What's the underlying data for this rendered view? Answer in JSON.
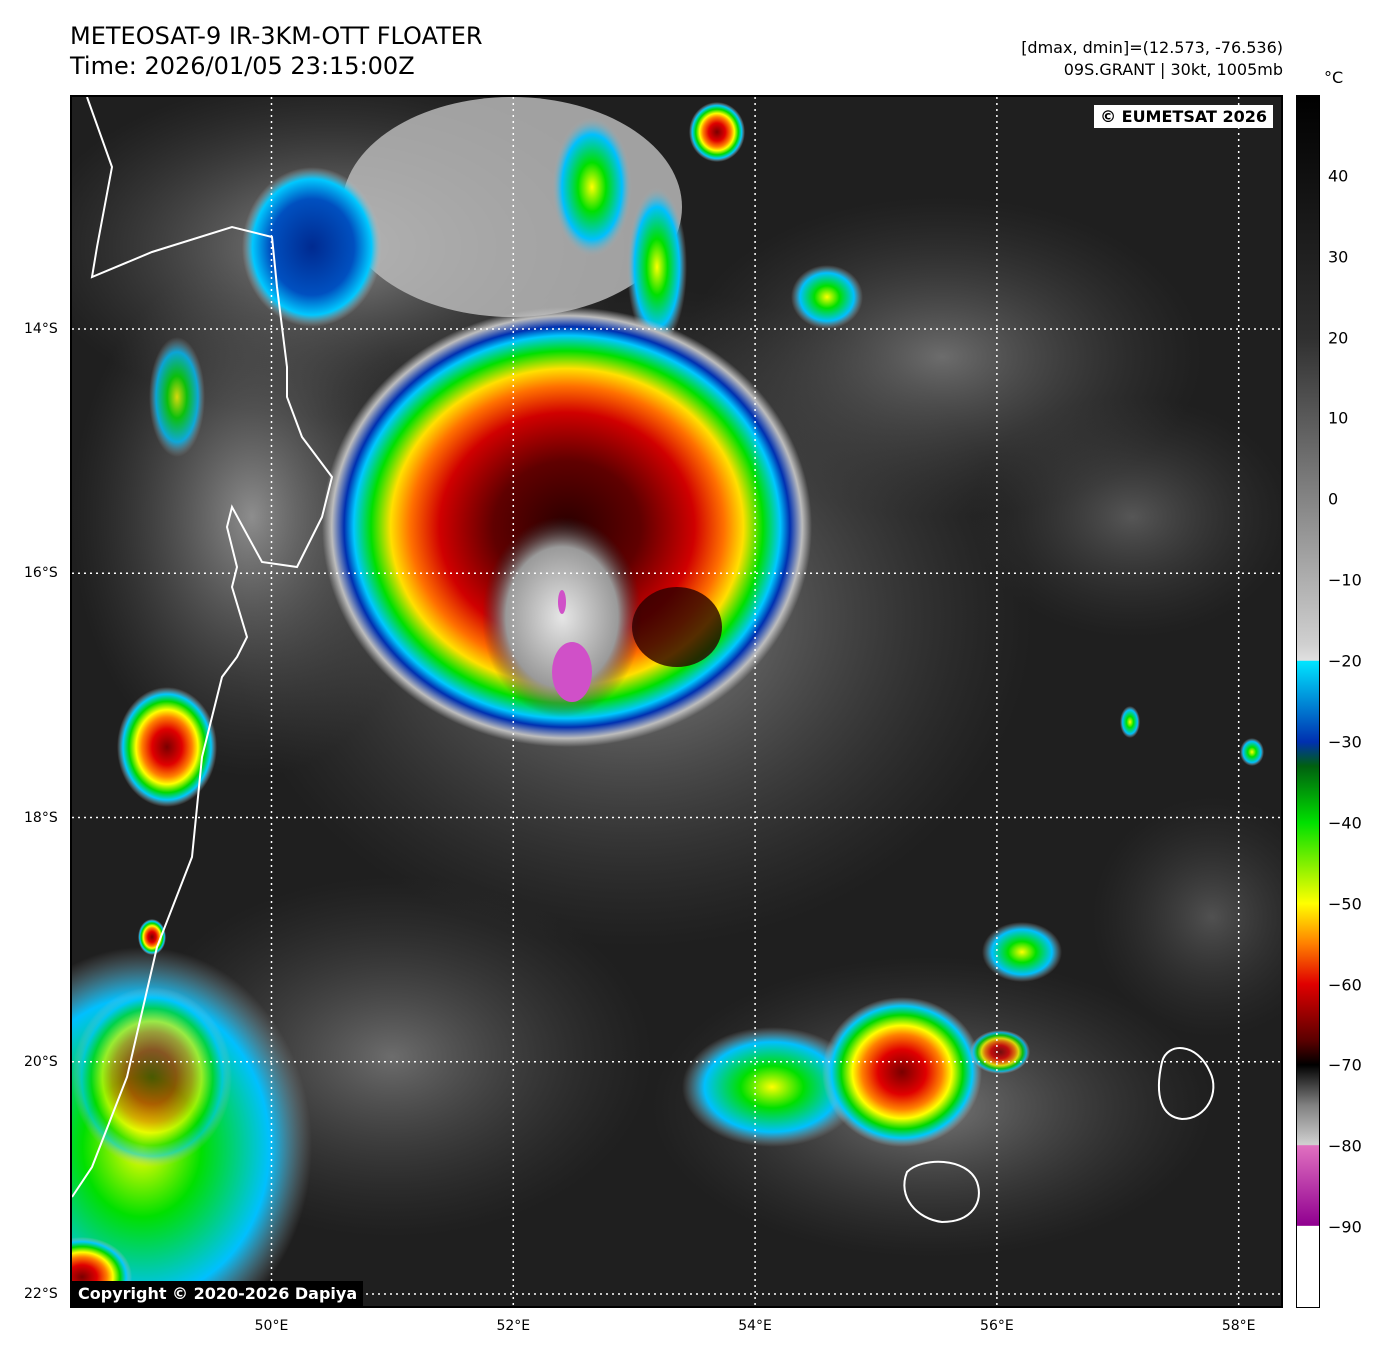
{
  "header": {
    "title_line1": "METEOSAT-9 IR-3KM-OTT FLOATER",
    "title_line2": "Time: 2026/01/05 23:15:00Z",
    "info_line1": "[dmax, dmin]=(12.573, -76.536)",
    "info_line2": "09S.GRANT | 30kt, 1005mb"
  },
  "map": {
    "lon_range": [
      48.35,
      58.35
    ],
    "lat_range": [
      -22.0,
      -12.1
    ],
    "lat_labels": [
      {
        "value": -14,
        "label": "14°S"
      },
      {
        "value": -16,
        "label": "16°S"
      },
      {
        "value": -18,
        "label": "18°S"
      },
      {
        "value": -20,
        "label": "20°S"
      },
      {
        "value": -22,
        "label": "22°S"
      }
    ],
    "lon_labels": [
      {
        "value": 50,
        "label": "50°E"
      },
      {
        "value": 52,
        "label": "52°E"
      },
      {
        "value": 54,
        "label": "54°E"
      },
      {
        "value": 56,
        "label": "56°E"
      },
      {
        "value": 58,
        "label": "58°E"
      }
    ],
    "storm_center": {
      "lon": 53.1,
      "lat": -16.2
    },
    "copyright_top": "© EUMETSAT 2026",
    "copyright_bottom": "Copyright © 2020-2026 Dapiya"
  },
  "colorbar": {
    "unit": "°C",
    "min": -100,
    "max": 50,
    "ticks": [
      40,
      30,
      20,
      10,
      0,
      -10,
      -20,
      -30,
      -40,
      -50,
      -60,
      -70,
      -80,
      -90
    ],
    "tick_labels": [
      "40",
      "30",
      "20",
      "10",
      "0",
      "−10",
      "−20",
      "−30",
      "−40",
      "−50",
      "−60",
      "−70",
      "−80",
      "−90"
    ]
  },
  "colors": {
    "warm_black": "#000000",
    "gray_light": "#d0d0d0",
    "cyan": "#00e5ff",
    "blue": "#0030b0",
    "green": "#00e000",
    "yellow": "#ffff00",
    "orange": "#ff8000",
    "red": "#e00000",
    "dark_red": "#5a0000",
    "magenta": "#d040c0",
    "coast": "#ffffff"
  }
}
